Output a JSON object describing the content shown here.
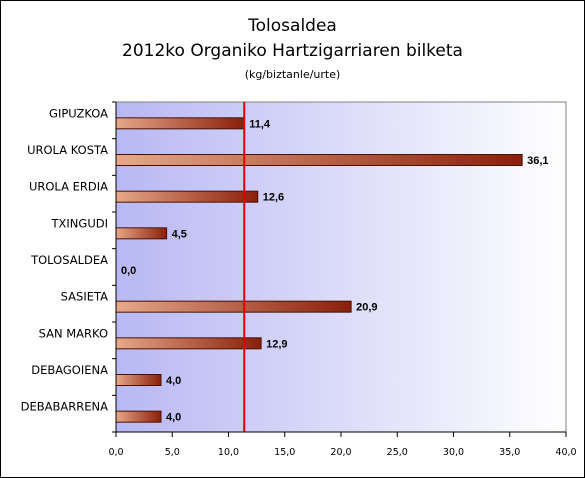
{
  "chart_data": {
    "type": "bar",
    "orientation": "horizontal",
    "title": "Tolosaldea",
    "subtitle": "2012ko Organiko Hartzigarriaren bilketa",
    "unit_note": "(kg/biztanle/urte)",
    "categories": [
      "GIPUZKOA",
      "UROLA KOSTA",
      "UROLA ERDIA",
      "TXINGUDI",
      "TOLOSALDEA",
      "SASIETA",
      "SAN MARKO",
      "DEBAGOIENA",
      "DEBABARRENA"
    ],
    "values": [
      11.4,
      36.1,
      12.6,
      4.5,
      0.0,
      20.9,
      12.9,
      4.0,
      4.0
    ],
    "value_labels": [
      "11,4",
      "36,1",
      "12,6",
      "4,5",
      "0,0",
      "20,9",
      "12,9",
      "4,0",
      "4,0"
    ],
    "xlim": [
      0,
      40
    ],
    "xticks": [
      0,
      5,
      10,
      15,
      20,
      25,
      30,
      35,
      40
    ],
    "xtick_labels": [
      "0,0",
      "5,0",
      "10,0",
      "15,0",
      "20,0",
      "25,0",
      "30,0",
      "35,0",
      "40,0"
    ],
    "reference_line": 11.4,
    "grid": false,
    "legend": "none",
    "colors": {
      "bar_light": "#e6a889",
      "bar_dark": "#8a1f0a",
      "bar_border": "#4a1000",
      "plot_bg_left": "#b8b8f4",
      "plot_bg_right": "#ffffff",
      "reference_line": "#e00000"
    }
  }
}
